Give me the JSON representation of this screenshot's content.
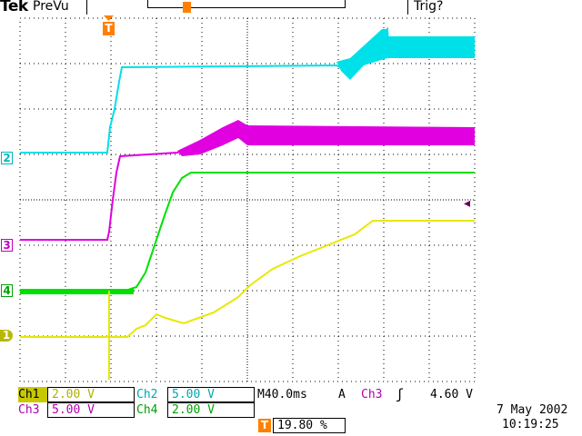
{
  "header": {
    "brand": "Tek",
    "mode": "PreVu",
    "trigger_status": "Trig?"
  },
  "markers": {
    "trigger_position": "T",
    "trigger_level": "◂",
    "ch1": "1",
    "ch2": "2",
    "ch3": "3",
    "ch4": "4"
  },
  "readout": {
    "ch1_label": "Ch1",
    "ch1_scale": "2.00 V",
    "ch2_label": "Ch2",
    "ch2_scale": "5.00 V",
    "ch3_label": "Ch3",
    "ch3_scale": "5.00 V",
    "ch4_label": "Ch4",
    "ch4_scale": "2.00 V",
    "timebase": "M40.0ms",
    "trigger_mode": "A",
    "trigger_source": "Ch3",
    "trigger_slope": "ʃ",
    "trigger_level": "4.60 V",
    "trigger_pos_icon": "T",
    "trigger_pos_value": "19.80 %",
    "date": "7 May 2002",
    "time": "10:19:25"
  },
  "colors": {
    "ch1": "#e8e800",
    "ch2": "#00e0e8",
    "ch3": "#e000e0",
    "ch4": "#00e000",
    "trigger": "#ff8000",
    "grid": "#000000"
  }
}
